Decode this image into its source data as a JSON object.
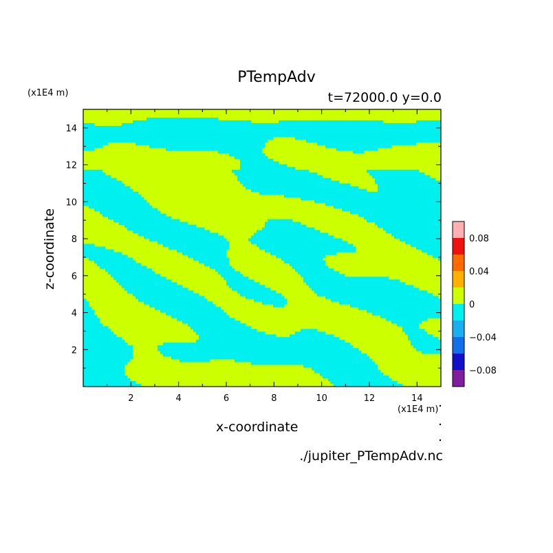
{
  "chart_data": {
    "type": "heatmap",
    "title": "PTempAdv",
    "subtitle": "t=72000.0 y=0.0",
    "xlabel": "x-coordinate",
    "ylabel": "z-coordinate",
    "x_unit": "(x1E4 m)",
    "y_unit": "(x1E4 m)",
    "xlim": [
      0,
      15
    ],
    "ylim": [
      0,
      15
    ],
    "xticks": [
      "2",
      "4",
      "6",
      "8",
      "10",
      "12",
      "14"
    ],
    "yticks": [
      "2",
      "4",
      "6",
      "8",
      "10",
      "12",
      "14"
    ],
    "colorbar": {
      "levels": [
        -0.1,
        -0.08,
        -0.06,
        -0.04,
        -0.02,
        0,
        0.02,
        0.04,
        0.06,
        0.08,
        0.1
      ],
      "colors": [
        "#7f1fa0",
        "#1010c8",
        "#1070e8",
        "#1ab0f0",
        "#00f0f0",
        "#ccff00",
        "#ffb000",
        "#ff6a00",
        "#f01010",
        "#ffb0b0"
      ],
      "tick_labels": [
        {
          "value": 0.08,
          "label": "0.08"
        },
        {
          "value": 0.04,
          "label": "0.04"
        },
        {
          "value": 0,
          "label": "0"
        },
        {
          "value": -0.04,
          "label": "−0.04"
        },
        {
          "value": -0.08,
          "label": "−0.08"
        }
      ]
    },
    "field_colors": {
      "negative": "#00f0f0",
      "positive": "#ccff00"
    },
    "field_description": "values near zero; cyan for slightly negative (-0.02 to 0) and yellow-green for slightly positive (0 to 0.02)"
  },
  "footer": {
    "filename": "./jupiter_PTempAdv.nc"
  }
}
